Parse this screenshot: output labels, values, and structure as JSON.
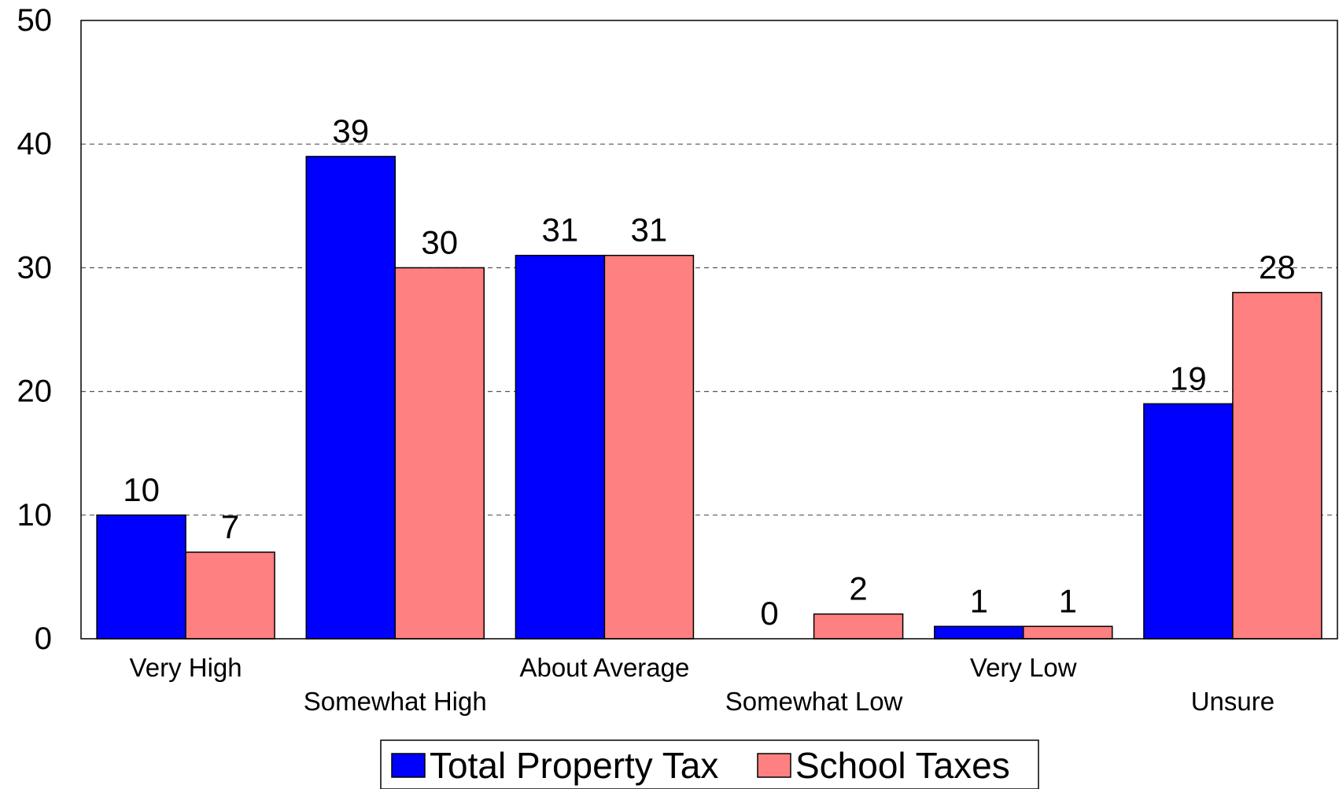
{
  "chart_data": {
    "type": "bar",
    "categories": [
      "Very High",
      "Somewhat High",
      "About Average",
      "Somewhat Low",
      "Very Low",
      "Unsure"
    ],
    "series": [
      {
        "name": "Total Property Tax",
        "values": [
          10,
          39,
          31,
          0,
          1,
          19
        ],
        "color": "#0000ff"
      },
      {
        "name": "School Taxes",
        "values": [
          7,
          30,
          31,
          2,
          1,
          28
        ],
        "color": "#ff8080"
      }
    ],
    "ylim": [
      0,
      50
    ],
    "yticks": [
      0,
      10,
      20,
      30,
      40,
      50
    ],
    "grid": true,
    "legend": "bottom-center",
    "title": "",
    "xlabel": "",
    "ylabel": ""
  }
}
